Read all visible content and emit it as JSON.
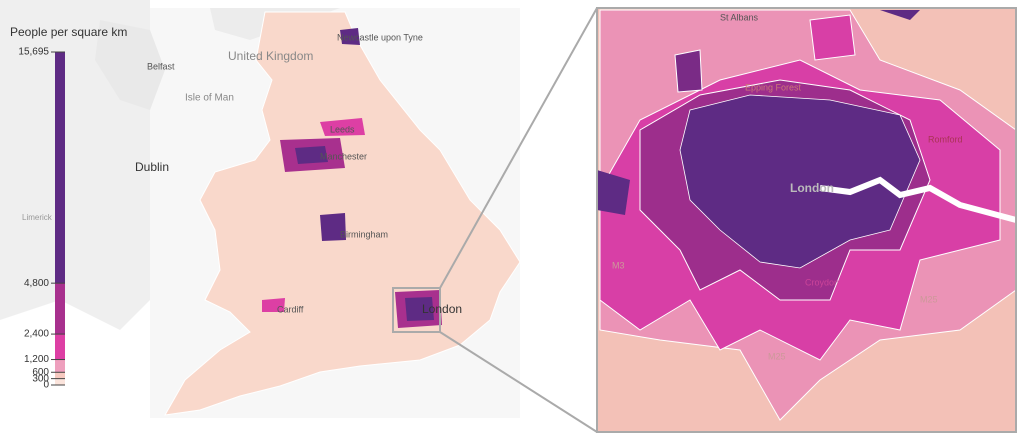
{
  "legend": {
    "title": "People per square km",
    "ticks": [
      {
        "value": 0,
        "label": "0"
      },
      {
        "value": 300,
        "label": "300"
      },
      {
        "value": 600,
        "label": "600"
      },
      {
        "value": 1200,
        "label": "1,200"
      },
      {
        "value": 2400,
        "label": "2,400"
      },
      {
        "value": 4800,
        "label": "4,800"
      },
      {
        "value": 15695,
        "label": "15,695"
      }
    ],
    "colors": [
      "#fbe4dc",
      "#f6c9c0",
      "#ee9fbd",
      "#dd3fa4",
      "#a8308e",
      "#5e2b84"
    ]
  },
  "map_labels": [
    "Newcastle upon Tyne",
    "Belfast",
    "United Kingdom",
    "Isle of Man",
    "Leeds",
    "Dublin",
    "Manchester",
    "Limerick",
    "Birmingham",
    "Cardiff",
    "London"
  ],
  "inset_labels": [
    "St Albans",
    "Epping Forest",
    "Romford",
    "London",
    "Croydon",
    "M25",
    "M3",
    "M25"
  ]
}
